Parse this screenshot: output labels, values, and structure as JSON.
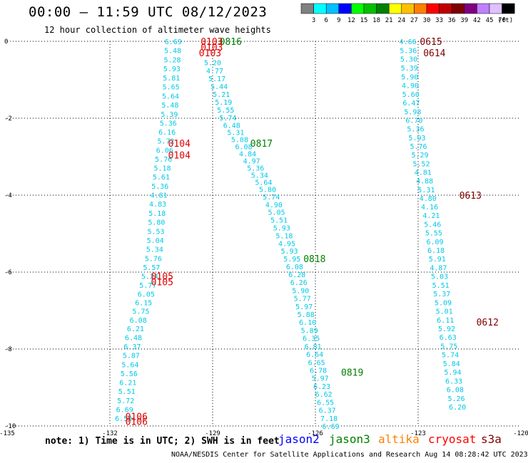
{
  "header": {
    "title": "00:00 – 11:59 UTC 08/12/2023",
    "subtitle": "12 hour collection of altimeter wave heights"
  },
  "legend": {
    "unit": "(ft)",
    "bins": [
      {
        "label": "3",
        "color": "#808080"
      },
      {
        "label": "6",
        "color": "#00ffff"
      },
      {
        "label": "9",
        "color": "#00c0ff"
      },
      {
        "label": "12",
        "color": "#0000ff"
      },
      {
        "label": "15",
        "color": "#00ff00"
      },
      {
        "label": "18",
        "color": "#00c000"
      },
      {
        "label": "21",
        "color": "#008000"
      },
      {
        "label": "24",
        "color": "#ffff00"
      },
      {
        "label": "27",
        "color": "#ffc000"
      },
      {
        "label": "30",
        "color": "#ff8000"
      },
      {
        "label": "33",
        "color": "#ff0000"
      },
      {
        "label": "36",
        "color": "#c00000"
      },
      {
        "label": "39",
        "color": "#800000"
      },
      {
        "label": "42",
        "color": "#800080"
      },
      {
        "label": "45",
        "color": "#c080ff"
      },
      {
        "label": "70",
        "color": "#e0c0ff"
      },
      {
        "label": "",
        "color": "#000000"
      }
    ]
  },
  "axes": {
    "lon_labels": [
      "-135",
      "-132",
      "-129",
      "-126",
      "-123",
      "-120"
    ],
    "lat_labels": [
      "0",
      "-2",
      "-4",
      "-6",
      "-8",
      "-10"
    ],
    "lon_range": [
      -135,
      -120
    ],
    "lat_range": [
      -10,
      0
    ]
  },
  "tracks": [
    {
      "color": "#00c8e6",
      "values": [
        "6.69",
        "5.48",
        "5.28",
        "5.93",
        "5.81",
        "5.65",
        "5.64",
        "5.48",
        "5.39",
        "5.36",
        "6.16",
        "5.72",
        "6.06",
        "5.76",
        "5.18",
        "5.61",
        "5.36",
        "4.81",
        "4.83",
        "5.18",
        "5.80",
        "5.53",
        "5.04",
        "5.34",
        "5.76",
        "5.57",
        "5.24",
        "5.77",
        "6.05",
        "6.15",
        "5.75",
        "6.08",
        "6.21",
        "6.48",
        "6.37",
        "5.87",
        "5.64",
        "5.56",
        "6.21",
        "5.51",
        "5.72",
        "6.69",
        "6.59"
      ]
    },
    {
      "color": "#00c8e6",
      "values": [
        "5.20",
        "4.77",
        "5.17",
        "5.44",
        "5.21",
        "5.19",
        "5.55",
        "5.74",
        "6.48",
        "5.31",
        "5.08",
        "6.08",
        "4.84",
        "4.97",
        "5.36",
        "5.34",
        "5.64",
        "5.80",
        "5.74",
        "4.90",
        "5.05",
        "5.51",
        "5.93",
        "5.18",
        "4.95",
        "5.93",
        "5.95",
        "6.08",
        "6.28",
        "6.26",
        "5.90",
        "5.77",
        "5.97",
        "5.88",
        "6.10",
        "5.89",
        "6.35",
        "6.81",
        "6.64",
        "6.65",
        "6.78",
        "5.97",
        "6.23",
        "6.62",
        "6.55",
        "6.37",
        "7.18",
        "6.69"
      ]
    },
    {
      "color": "#00c8e6",
      "values": [
        "4.66",
        "5.36",
        "5.30",
        "5.39",
        "5.90",
        "4.90",
        "5.60",
        "6.47",
        "5.98",
        "6.70",
        "5.36",
        "5.93",
        "5.76",
        "5.29",
        "5.52",
        "4.81",
        "4.88",
        "5.31",
        "4.80",
        "4.16",
        "4.21",
        "5.46",
        "5.55",
        "6.09",
        "6.18",
        "5.91",
        "4.87",
        "5.03",
        "5.51",
        "5.37",
        "5.09",
        "5.01",
        "6.11",
        "5.92",
        "6.63",
        "5.75",
        "5.74",
        "5.84",
        "5.94",
        "6.33",
        "6.08",
        "5.26",
        "6.20"
      ]
    }
  ],
  "pass_labels": [
    {
      "text": "0816",
      "lon": -128.8,
      "lat": 0.0,
      "color": "#008000"
    },
    {
      "text": "0103",
      "lon": -129.35,
      "lat": 0.0,
      "color": "#e00000"
    },
    {
      "text": "0103",
      "lon": -129.35,
      "lat": -0.15,
      "color": "#e00000"
    },
    {
      "text": "0103",
      "lon": -129.4,
      "lat": -0.3,
      "color": "#e00000"
    },
    {
      "text": "0104",
      "lon": -130.3,
      "lat": -2.65,
      "color": "#e00000"
    },
    {
      "text": "0104",
      "lon": -130.3,
      "lat": -2.95,
      "color": "#e00000"
    },
    {
      "text": "0817",
      "lon": -127.9,
      "lat": -2.65,
      "color": "#008000"
    },
    {
      "text": "0818",
      "lon": -126.35,
      "lat": -5.65,
      "color": "#008000"
    },
    {
      "text": "0105",
      "lon": -130.8,
      "lat": -6.1,
      "color": "#e00000"
    },
    {
      "text": "0105",
      "lon": -130.8,
      "lat": -6.25,
      "color": "#e00000"
    },
    {
      "text": "0819",
      "lon": -125.25,
      "lat": -8.6,
      "color": "#008000"
    },
    {
      "text": "0106",
      "lon": -131.55,
      "lat": -9.75,
      "color": "#e00000"
    },
    {
      "text": "0106",
      "lon": -131.55,
      "lat": -9.88,
      "color": "#e00000"
    },
    {
      "text": "0615",
      "lon": -122.95,
      "lat": 0.0,
      "color": "#800000"
    },
    {
      "text": "0614",
      "lon": -122.85,
      "lat": -0.3,
      "color": "#800000"
    },
    {
      "text": "0613",
      "lon": -121.8,
      "lat": -4.0,
      "color": "#800000"
    },
    {
      "text": "0612",
      "lon": -121.3,
      "lat": -7.3,
      "color": "#800000"
    }
  ],
  "note": "note: 1) Time is in UTC; 2) SWH is in feet",
  "satellites": [
    {
      "name": "jason2",
      "color": "#0000ff"
    },
    {
      "name": "jason3",
      "color": "#008000"
    },
    {
      "name": "altika",
      "color": "#ff8000"
    },
    {
      "name": "cryosat",
      "color": "#ff0000"
    },
    {
      "name": "s3a",
      "color": "#800000"
    }
  ],
  "footer": "NOAA/NESDIS Center for Satellite Applications and Research   Aug 14 08:28:42 UTC 2023"
}
